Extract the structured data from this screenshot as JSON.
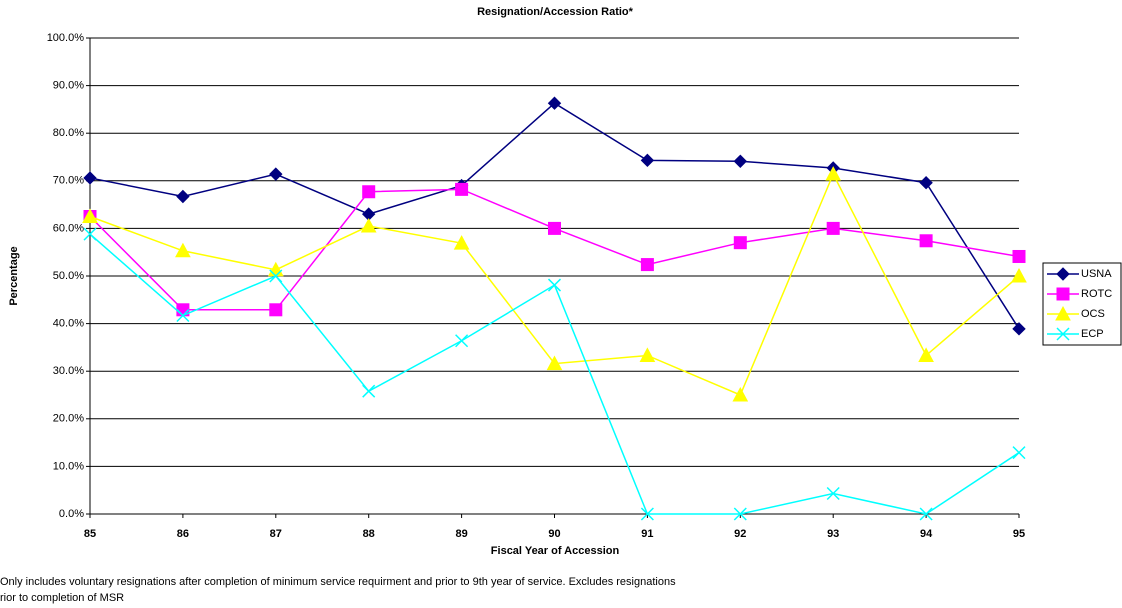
{
  "chart_data": {
    "type": "line",
    "title": "Resignation/Accession Ratio*",
    "x_label": "Fiscal Year of Accession",
    "y_label": "Percentage",
    "categories": [
      "85",
      "86",
      "87",
      "88",
      "89",
      "90",
      "91",
      "92",
      "93",
      "94",
      "95"
    ],
    "ylim": [
      0,
      100
    ],
    "yticks": [
      {
        "value": 0,
        "label": "0.0%"
      },
      {
        "value": 10,
        "label": "10.0%"
      },
      {
        "value": 20,
        "label": "20.0%"
      },
      {
        "value": 30,
        "label": "30.0%"
      },
      {
        "value": 40,
        "label": "40.0%"
      },
      {
        "value": 50,
        "label": "50.0%"
      },
      {
        "value": 60,
        "label": "60.0%"
      },
      {
        "value": 70,
        "label": "70.0%"
      },
      {
        "value": 80,
        "label": "80.0%"
      },
      {
        "value": 90,
        "label": "90.0%"
      },
      {
        "value": 100,
        "label": "100.0%"
      }
    ],
    "grid": true,
    "legend": "right",
    "series": [
      {
        "name": "USNA",
        "color": "#000080",
        "marker": "diamond",
        "values": [
          70.6,
          66.7,
          71.4,
          63.0,
          69.0,
          86.3,
          74.3,
          74.1,
          72.7,
          69.6,
          38.9
        ]
      },
      {
        "name": "ROTC",
        "color": "#ff00ff",
        "marker": "square",
        "values": [
          62.5,
          42.9,
          42.9,
          67.7,
          68.2,
          60.0,
          52.4,
          57.0,
          60.0,
          57.4,
          54.1
        ]
      },
      {
        "name": "OCS",
        "color": "#ffff00",
        "marker": "triangle",
        "values": [
          62.5,
          55.3,
          51.3,
          60.5,
          56.9,
          31.6,
          33.3,
          25.0,
          71.4,
          33.3,
          50.0
        ]
      },
      {
        "name": "ECP",
        "color": "#00ffff",
        "marker": "x",
        "values": [
          58.8,
          41.7,
          50.0,
          25.8,
          36.4,
          48.1,
          0,
          0,
          4.3,
          0,
          12.9
        ]
      }
    ],
    "footnote": [
      "Only includes voluntary resignations after completion of minimum service requirment and prior to 9th year of service.   Excludes resignations",
      "rior to completion of MSR"
    ]
  }
}
